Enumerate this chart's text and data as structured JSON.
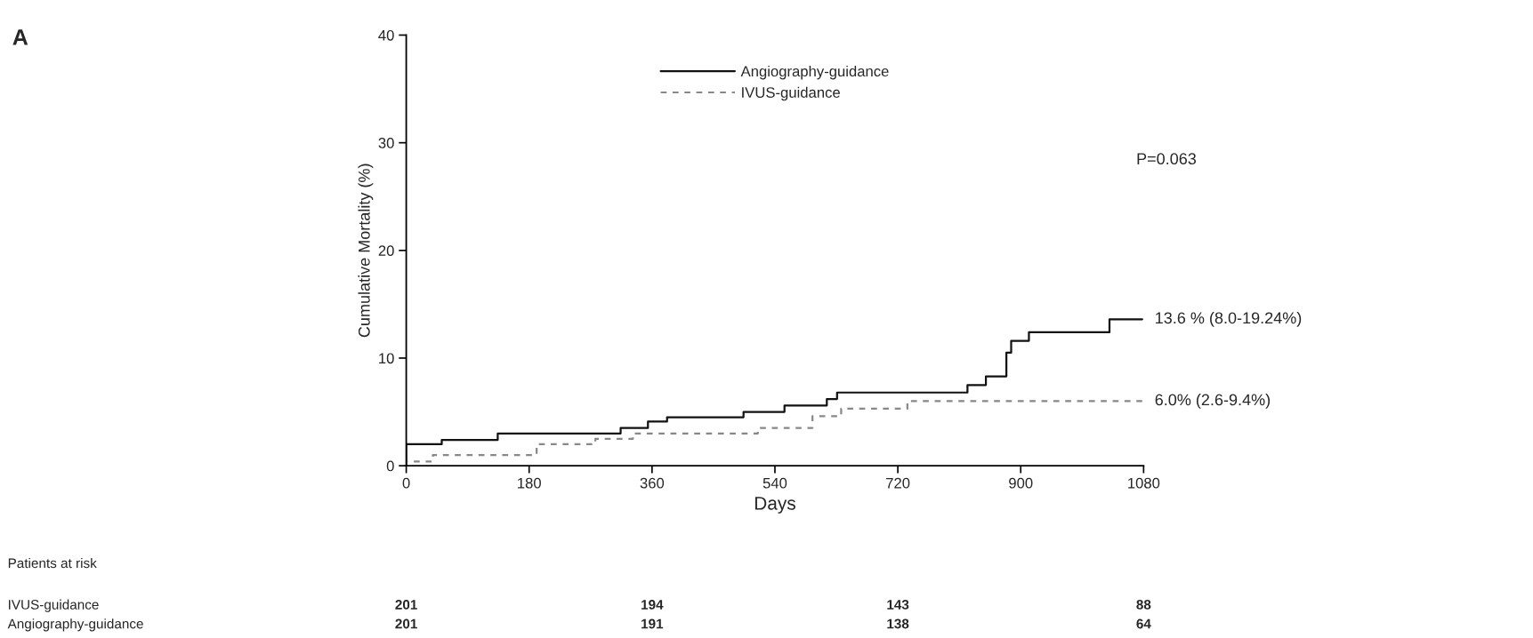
{
  "chart_data": {
    "type": "step",
    "title": "A",
    "xlabel": "Days",
    "ylabel": "Cumulative Mortality (%)",
    "xlim": [
      0,
      1080
    ],
    "xticks": [
      0,
      180,
      360,
      540,
      720,
      900,
      1080
    ],
    "ylim": [
      0,
      40
    ],
    "yticks": [
      0,
      10,
      20,
      30,
      40
    ],
    "grid": false,
    "legend": "top",
    "marker": "none",
    "series": [
      {
        "name": "Angiography-guidance",
        "color": "#111111",
        "line_style": "solid",
        "x": [
          0,
          0,
          52,
          134,
          314,
          354,
          382,
          494,
          554,
          616,
          631,
          822,
          849,
          879,
          886,
          912,
          1030,
          1078
        ],
        "values": [
          0,
          2.0,
          2.4,
          3.0,
          3.5,
          4.1,
          4.5,
          5.0,
          5.6,
          6.2,
          6.8,
          7.5,
          8.3,
          10.5,
          11.6,
          12.4,
          13.6,
          13.6
        ]
      },
      {
        "name": "IVUS-guidance",
        "color": "#888888",
        "line_style": "dashed",
        "x": [
          0,
          0,
          39,
          191,
          277,
          332,
          515,
          595,
          637,
          734,
          1078
        ],
        "values": [
          0,
          0.4,
          1.0,
          2.0,
          2.5,
          3.0,
          3.5,
          4.6,
          5.3,
          6.0,
          6.0
        ]
      }
    ],
    "annotations": [
      "P=0.063",
      {
        "text": "13.6 % (8.0-19.24%)",
        "x": 1078,
        "y": 13.6
      },
      {
        "text": "6.0% (2.6-9.4%)",
        "x": 1078,
        "y": 6.0
      },
      "Patients at risk",
      "IVUS-guidance",
      "201",
      "194",
      "143",
      "88",
      "Angiography-guidance",
      "201",
      "191",
      "138",
      "64"
    ]
  }
}
